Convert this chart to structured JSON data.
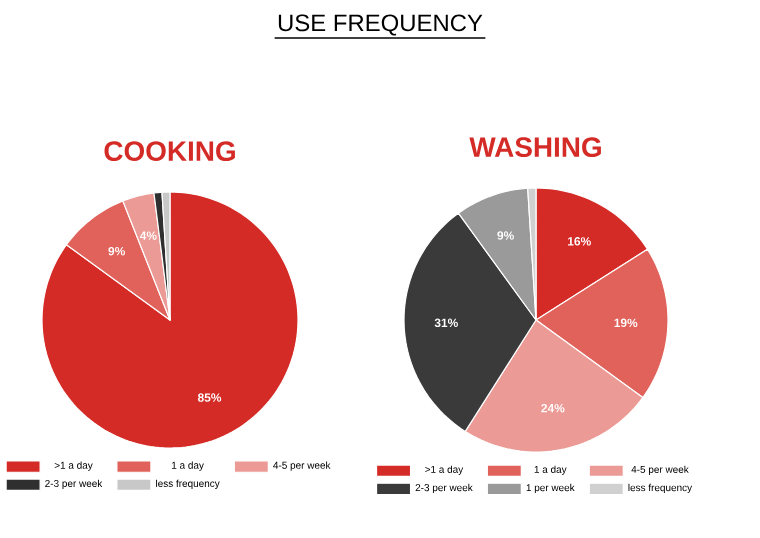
{
  "chart_data": [
    {
      "type": "pie",
      "title": "COOKING",
      "annotations": [
        "USE FREQUENCY"
      ],
      "legend": "bottom",
      "categories": [
        ">1 a day",
        "1 a day",
        "4-5 per week",
        "2-3 per week",
        "less frequency"
      ],
      "values": [
        85,
        9,
        4,
        1,
        1
      ],
      "value_labels": [
        "85%",
        "9%",
        "4%",
        null,
        null
      ],
      "colors": [
        "#d42b27",
        "#e0625a",
        "#ec9a95",
        "#2f2f2f",
        "#c8c8c8"
      ]
    },
    {
      "type": "pie",
      "title": "WASHING",
      "legend": "bottom",
      "categories": [
        ">1 a day",
        "1 a day",
        "4-5 per week",
        "2-3 per week",
        "1 per week",
        "less frequency"
      ],
      "values": [
        16,
        19,
        24,
        31,
        9,
        1
      ],
      "value_labels": [
        "16%",
        "19%",
        "24%",
        "31%",
        "9%",
        null
      ],
      "colors": [
        "#d42b27",
        "#e0625a",
        "#ec9a95",
        "#3a3a3a",
        "#9a9a9a",
        "#d0d0d0"
      ]
    }
  ]
}
